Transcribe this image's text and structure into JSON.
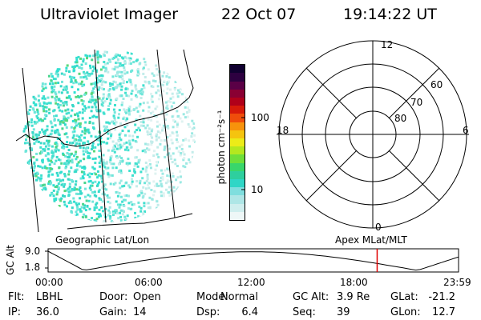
{
  "header": {
    "title": "Ultraviolet Imager",
    "date": "22 Oct 07",
    "time": "19:14:22 UT"
  },
  "colorbar": {
    "unit_label": "photon cm⁻²s⁻¹",
    "tick_100": "100",
    "tick_10": "10",
    "colors": [
      "#eef7f7",
      "#cfeeee",
      "#aee6e6",
      "#7fdede",
      "#2fd6c6",
      "#2ecf9e",
      "#39d66b",
      "#6fdf3a",
      "#b4e81f",
      "#ecec18",
      "#f5c40f",
      "#f7920c",
      "#ef4d0b",
      "#d61a0a",
      "#b0001a",
      "#8a0033",
      "#5a0046",
      "#2d0040",
      "#100030"
    ]
  },
  "polar": {
    "labels": {
      "top": "12",
      "bottom": "0",
      "left": "18",
      "right": "6"
    },
    "lat_labels": [
      "60",
      "70",
      "80"
    ]
  },
  "labels": {
    "geographic": "Geographic Lat/Lon",
    "apex": "Apex MLat/MLT"
  },
  "altitude_plot": {
    "axis_label": "GC Alt",
    "y_max": "9.0",
    "y_min": "1.8",
    "x_ticks": [
      "00:00",
      "06:00",
      "12:00",
      "18:00",
      "23:59"
    ],
    "current_time_hours": 19.24,
    "marker_color": "#e00000"
  },
  "footer": {
    "row1": [
      {
        "k": "Flt:",
        "v": "LBHL"
      },
      {
        "k": "Door:",
        "v": "Open"
      },
      {
        "k": "Mode:",
        "v": "Normal"
      },
      {
        "k": "GC Alt:",
        "v": "3.9 Re"
      },
      {
        "k": "GLat:",
        "v": "-21.2"
      }
    ],
    "row2": [
      {
        "k": "IP:",
        "v": "36.0"
      },
      {
        "k": "Gain:",
        "v": "14"
      },
      {
        "k": "Dsp:",
        "v": "6.4"
      },
      {
        "k": "Seq:",
        "v": "39"
      },
      {
        "k": "GLon:",
        "v": "12.7"
      }
    ]
  }
}
